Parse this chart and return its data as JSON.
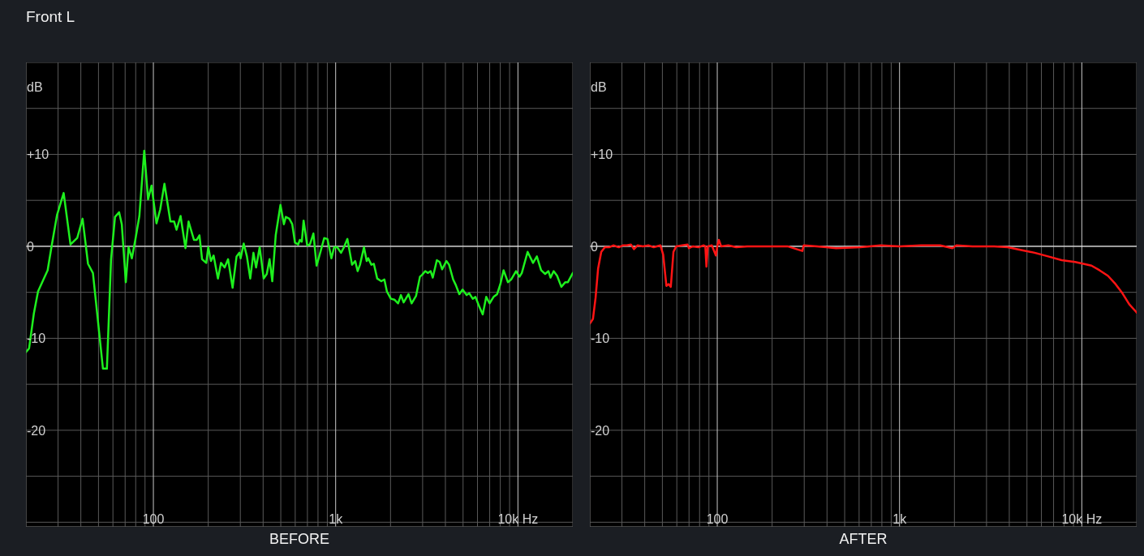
{
  "chart_data": [
    {
      "type": "line",
      "title": "Front L",
      "xlabel": "BEFORE",
      "ylabel": "dB",
      "color": "#1ef01e",
      "log": "x",
      "grid": true,
      "xlim": [
        20,
        20000
      ],
      "xticks": [
        {
          "value": 30,
          "label": null
        },
        {
          "value": 40,
          "label": null
        },
        {
          "value": 50,
          "label": null
        },
        {
          "value": 60,
          "label": null
        },
        {
          "value": 70,
          "label": null
        },
        {
          "value": 80,
          "label": null
        },
        {
          "value": 90,
          "label": null
        },
        {
          "value": 100,
          "label": "100"
        },
        {
          "value": 200,
          "label": null
        },
        {
          "value": 300,
          "label": null
        },
        {
          "value": 400,
          "label": null
        },
        {
          "value": 500,
          "label": null
        },
        {
          "value": 600,
          "label": null
        },
        {
          "value": 700,
          "label": null
        },
        {
          "value": 800,
          "label": null
        },
        {
          "value": 900,
          "label": null
        },
        {
          "value": 1000,
          "label": "1k"
        },
        {
          "value": 2000,
          "label": null
        },
        {
          "value": 3000,
          "label": null
        },
        {
          "value": 4000,
          "label": null
        },
        {
          "value": 5000,
          "label": null
        },
        {
          "value": 6000,
          "label": null
        },
        {
          "value": 7000,
          "label": null
        },
        {
          "value": 8000,
          "label": null
        },
        {
          "value": 9000,
          "label": null
        },
        {
          "value": 10000,
          "label": "10k Hz"
        }
      ],
      "ylim": [
        -30.5,
        20
      ],
      "yticks": [
        {
          "value": 15,
          "label": null
        },
        {
          "value": 10,
          "label": "+10"
        },
        {
          "value": 5,
          "label": null
        },
        0,
        {
          "value": -5,
          "label": null
        },
        -10,
        {
          "value": -15,
          "label": null
        },
        -20,
        {
          "value": -25,
          "label": null
        },
        {
          "value": -30,
          "label": null
        }
      ],
      "ref_lines": [
        {
          "axis": "y",
          "value": 0,
          "color": "#e6e6e6"
        }
      ],
      "x": [
        20,
        20.8,
        22.1,
        23.3,
        26.3,
        27.7,
        29.6,
        32.2,
        35.1,
        38.2,
        40.9,
        43.8,
        46.6,
        52.9,
        55.6,
        58.6,
        61.6,
        64.9,
        67.1,
        70.6,
        73.1,
        76.2,
        79.6,
        83.8,
        89.1,
        93.5,
        97.7,
        104,
        109,
        115,
        124,
        130,
        134,
        141,
        150,
        156,
        167,
        173,
        179,
        185,
        195,
        200,
        207,
        214,
        226,
        235,
        246,
        257,
        272,
        286,
        296,
        301,
        313,
        326,
        340,
        354,
        366,
        383,
        403,
        419,
        434,
        449,
        469,
        498,
        520,
        533,
        557,
        578,
        598,
        623,
        636,
        652,
        667,
        698,
        722,
        755,
        786,
        828,
        865,
        901,
        948,
        981,
        1020,
        1070,
        1110,
        1160,
        1230,
        1280,
        1320,
        1360,
        1430,
        1480,
        1510,
        1570,
        1620,
        1690,
        1780,
        1850,
        1910,
        2010,
        2100,
        2200,
        2280,
        2360,
        2510,
        2610,
        2760,
        2900,
        2980,
        3100,
        3210,
        3320,
        3410,
        3590,
        3720,
        3840,
        4050,
        4190,
        4410,
        4560,
        4770,
        4970,
        5230,
        5410,
        5650,
        5850,
        6090,
        6410,
        6700,
        6990,
        7350,
        7690,
        8010,
        8340,
        8810,
        9180,
        9760,
        10200,
        10500,
        11300,
        12100,
        12700,
        13400,
        14100,
        14700,
        15100,
        15700,
        16400,
        17300,
        18200,
        18800,
        20000
      ],
      "values": [
        -11.5,
        -11.1,
        -7.3,
        -4.9,
        -2.6,
        0.1,
        3.4,
        5.8,
        0.2,
        0.9,
        3.0,
        -1.9,
        -2.9,
        -13.3,
        -13.3,
        -1.4,
        3.2,
        3.7,
        2.4,
        -3.9,
        -0.1,
        -1.3,
        0.7,
        3.3,
        10.4,
        5.1,
        6.6,
        2.5,
        4.0,
        6.8,
        2.7,
        2.7,
        1.8,
        3.3,
        -0.2,
        2.7,
        0.7,
        0.7,
        1.2,
        -1.4,
        -1.8,
        -0.1,
        -1.6,
        -1.0,
        -3.5,
        -1.8,
        -2.3,
        -1.4,
        -4.5,
        -1.1,
        -0.7,
        -1.3,
        0.3,
        -1.1,
        -3.5,
        -0.7,
        -2.3,
        -0.1,
        -3.5,
        -3.0,
        -1.4,
        -3.8,
        1.2,
        4.5,
        2.4,
        3.2,
        3.0,
        2.4,
        0.4,
        0.2,
        0.7,
        0.5,
        2.8,
        0.1,
        0.2,
        1.4,
        -2.1,
        -0.5,
        0.9,
        0.8,
        -1.3,
        -0.1,
        -0.1,
        -0.7,
        -0.1,
        0.8,
        -2.0,
        -1.6,
        -2.7,
        -2.0,
        -0.1,
        -1.6,
        -1.3,
        -2.0,
        -1.9,
        -3.5,
        -3.8,
        -3.6,
        -4.9,
        -5.7,
        -5.8,
        -6.2,
        -5.3,
        -6.1,
        -5.2,
        -6.2,
        -5.4,
        -3.3,
        -3.1,
        -2.7,
        -2.9,
        -2.7,
        -3.4,
        -1.5,
        -1.7,
        -2.5,
        -1.6,
        -2.0,
        -3.6,
        -4.2,
        -5.2,
        -4.7,
        -5.3,
        -5.1,
        -5.7,
        -5.5,
        -6.4,
        -7.4,
        -5.5,
        -6.2,
        -5.5,
        -5.2,
        -4.1,
        -2.6,
        -3.9,
        -3.6,
        -2.7,
        -3.3,
        -2.9,
        -0.6,
        -1.8,
        -1.1,
        -2.6,
        -3.0,
        -2.7,
        -3.4,
        -2.7,
        -3.2,
        -4.4,
        -3.9,
        -3.9,
        -2.9
      ]
    },
    {
      "type": "line",
      "xlabel": "AFTER",
      "ylabel": "dB",
      "color": "#ff1414",
      "log": "x",
      "grid": true,
      "xlim": [
        20,
        20000
      ],
      "xticks": [
        {
          "value": 30,
          "label": null
        },
        {
          "value": 40,
          "label": null
        },
        {
          "value": 50,
          "label": null
        },
        {
          "value": 60,
          "label": null
        },
        {
          "value": 70,
          "label": null
        },
        {
          "value": 80,
          "label": null
        },
        {
          "value": 90,
          "label": null
        },
        {
          "value": 100,
          "label": "100"
        },
        {
          "value": 200,
          "label": null
        },
        {
          "value": 300,
          "label": null
        },
        {
          "value": 400,
          "label": null
        },
        {
          "value": 500,
          "label": null
        },
        {
          "value": 600,
          "label": null
        },
        {
          "value": 700,
          "label": null
        },
        {
          "value": 800,
          "label": null
        },
        {
          "value": 900,
          "label": null
        },
        {
          "value": 1000,
          "label": "1k"
        },
        {
          "value": 2000,
          "label": null
        },
        {
          "value": 3000,
          "label": null
        },
        {
          "value": 4000,
          "label": null
        },
        {
          "value": 5000,
          "label": null
        },
        {
          "value": 6000,
          "label": null
        },
        {
          "value": 7000,
          "label": null
        },
        {
          "value": 8000,
          "label": null
        },
        {
          "value": 9000,
          "label": null
        },
        {
          "value": 10000,
          "label": "10k Hz"
        }
      ],
      "ylim": [
        -30.5,
        20
      ],
      "yticks": [
        {
          "value": 15,
          "label": null
        },
        {
          "value": 10,
          "label": "+10"
        },
        {
          "value": 5,
          "label": null
        },
        0,
        {
          "value": -5,
          "label": null
        },
        -10,
        {
          "value": -15,
          "label": null
        },
        -20,
        {
          "value": -25,
          "label": null
        },
        {
          "value": -30,
          "label": null
        }
      ],
      "ref_lines": [
        {
          "axis": "y",
          "value": 0,
          "color": "#e6e6e6"
        }
      ],
      "x": [
        20,
        20.8,
        21.5,
        22.2,
        23.1,
        24.2,
        25.5,
        26.9,
        28.8,
        30.3,
        31.9,
        33.6,
        34.9,
        36.5,
        39.1,
        41.9,
        44.8,
        48.8,
        50.5,
        52.6,
        54.1,
        55.6,
        57.5,
        59.5,
        64.2,
        68.7,
        69.9,
        73.6,
        78.8,
        84.3,
        86,
        87.2,
        88.7,
        93.4,
        98.3,
        100,
        102,
        105,
        115,
        127,
        146,
        167,
        198,
        243,
        293,
        298,
        353,
        449,
        610,
        788,
        1000,
        1310,
        1670,
        1950,
        2050,
        2510,
        3300,
        3920,
        4650,
        5510,
        6540,
        7750,
        9190,
        10200,
        11300,
        12500,
        13900,
        15300,
        16700,
        18200,
        19800,
        20000
      ],
      "values": [
        -8.4,
        -7.9,
        -5.6,
        -2.4,
        -0.6,
        -0.1,
        -0.1,
        0.1,
        -0.1,
        0.1,
        0.1,
        0.2,
        -0.3,
        0.1,
        0,
        0.1,
        -0.1,
        0.1,
        -0.9,
        -4.3,
        -4.1,
        -4.4,
        -0.6,
        0,
        0.1,
        0.2,
        -0.2,
        0,
        -0.1,
        0.1,
        0,
        -2.2,
        0,
        0.1,
        -1.0,
        0,
        0.7,
        0,
        0.1,
        -0.1,
        0,
        0,
        0,
        0,
        -0.5,
        0.1,
        0,
        -0.2,
        -0.1,
        0.1,
        0,
        0.1,
        0.1,
        -0.2,
        0.1,
        0,
        0,
        -0.1,
        -0.4,
        -0.7,
        -1.1,
        -1.5,
        -1.7,
        -1.9,
        -2.1,
        -2.6,
        -3.2,
        -4.1,
        -5.1,
        -6.3,
        -7.1,
        -7.2
      ]
    }
  ]
}
